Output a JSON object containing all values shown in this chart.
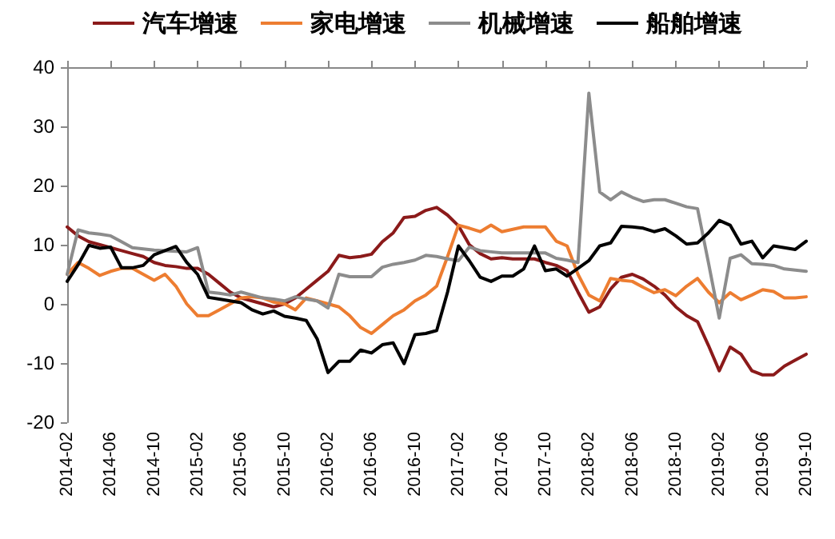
{
  "chart_data": {
    "type": "line",
    "categories": [
      "2014-02",
      null,
      null,
      null,
      "2014-06",
      null,
      null,
      null,
      "2014-10",
      null,
      null,
      null,
      "2015-02",
      null,
      null,
      null,
      "2015-06",
      null,
      null,
      null,
      "2015-10",
      null,
      null,
      null,
      "2016-02",
      null,
      null,
      null,
      "2016-06",
      null,
      null,
      null,
      "2016-10",
      null,
      null,
      null,
      "2017-02",
      null,
      null,
      null,
      "2017-06",
      null,
      null,
      null,
      "2017-10",
      null,
      null,
      null,
      "2018-02",
      null,
      null,
      null,
      "2018-06",
      null,
      null,
      null,
      "2018-10",
      null,
      null,
      null,
      "2019-02",
      null,
      null,
      null,
      "2019-06",
      null,
      null,
      null,
      "2019-10"
    ],
    "series": [
      {
        "name": "汽车增速",
        "color": "#8b1a1a",
        "values": [
          13,
          11.5,
          10.5,
          10,
          9.5,
          9,
          8.5,
          8,
          7,
          6.5,
          6.3,
          6,
          6,
          5,
          3.5,
          2,
          1,
          0.5,
          0,
          -0.5,
          0,
          1,
          2.5,
          4,
          5.5,
          8.2,
          7.8,
          8,
          8.4,
          10.5,
          12,
          14.6,
          14.8,
          15.8,
          16.3,
          15,
          13.2,
          10,
          8.5,
          7.6,
          7.8,
          7.6,
          7.6,
          7.6,
          7,
          6.5,
          5.6,
          2,
          -1.4,
          -0.5,
          2.5,
          4.5,
          5,
          4.2,
          3,
          1.5,
          -0.5,
          -2,
          -3,
          -7,
          -11.3,
          -7.3,
          -8.5,
          -11.3,
          -12,
          -12,
          -10.5,
          -9.5,
          -8.5
        ]
      },
      {
        "name": "家电增速",
        "color": "#ed7d31",
        "values": [
          5,
          7,
          6,
          4.8,
          5.5,
          6,
          6,
          5,
          4,
          5,
          3,
          0,
          -2,
          -2,
          -1,
          0,
          1,
          1.2,
          1,
          0.3,
          0,
          -1,
          1,
          0.5,
          0,
          -0.5,
          -2,
          -4,
          -5,
          -3.5,
          -2,
          -1,
          0.5,
          1.5,
          3,
          8,
          13.3,
          12.8,
          12.2,
          13.3,
          12.2,
          12.6,
          13,
          13,
          13,
          10.6,
          9.8,
          5,
          1.5,
          0.5,
          4.3,
          4,
          3.8,
          2.8,
          1.9,
          2.4,
          1.4,
          3,
          4.3,
          2,
          0.2,
          1.9,
          0.7,
          1.5,
          2.4,
          2.1,
          1,
          1,
          1.2
        ]
      },
      {
        "name": "机械增速",
        "color": "#8c8c8c",
        "values": [
          5,
          12.5,
          12,
          11.8,
          11.5,
          10.5,
          9.5,
          9.3,
          9.1,
          9,
          8.9,
          8.8,
          9.5,
          2,
          1.8,
          1.5,
          2,
          1.5,
          1,
          0.8,
          0.5,
          1.2,
          0.8,
          0.5,
          -0.7,
          5,
          4.6,
          4.6,
          4.6,
          6.2,
          6.7,
          7,
          7.4,
          8.2,
          8,
          7.6,
          7.3,
          9.6,
          9,
          8.8,
          8.6,
          8.6,
          8.6,
          8.6,
          8.6,
          7.7,
          7.4,
          7,
          35.6,
          18.9,
          17.6,
          18.9,
          18,
          17.3,
          17.6,
          17.6,
          17,
          16.4,
          16.1,
          7,
          -2.4,
          7.7,
          8.3,
          6.8,
          6.7,
          6.5,
          5.9,
          5.7,
          5.5
        ]
      },
      {
        "name": "船舶增速",
        "color": "#000000",
        "values": [
          3.8,
          6.6,
          9.9,
          9.4,
          9.6,
          6.1,
          6.1,
          6.5,
          8.3,
          9,
          9.7,
          7,
          5,
          1.1,
          0.8,
          0.5,
          0.2,
          -1,
          -1.7,
          -1.2,
          -2.1,
          -2.4,
          -2.8,
          -5.9,
          -11.6,
          -9.7,
          -9.7,
          -7.8,
          -8.3,
          -6.9,
          -6.6,
          -10.1,
          -5.2,
          -5,
          -4.5,
          2,
          9.8,
          7.3,
          4.5,
          3.8,
          4.7,
          4.7,
          5.9,
          9.8,
          5.6,
          5.9,
          4.7,
          6,
          7.3,
          9.8,
          10.3,
          13.1,
          13,
          12.8,
          12.2,
          12.7,
          11.5,
          10.1,
          10.3,
          12,
          14.1,
          13.3,
          10.1,
          10.6,
          7.8,
          9.8,
          9.5,
          9.2,
          10.6
        ]
      }
    ],
    "ylim": [
      -20,
      40
    ],
    "yticks": [
      -20,
      -10,
      0,
      10,
      20,
      30,
      40
    ],
    "grid": false,
    "legend": "top",
    "marker": "none",
    "line_style": "solid"
  }
}
